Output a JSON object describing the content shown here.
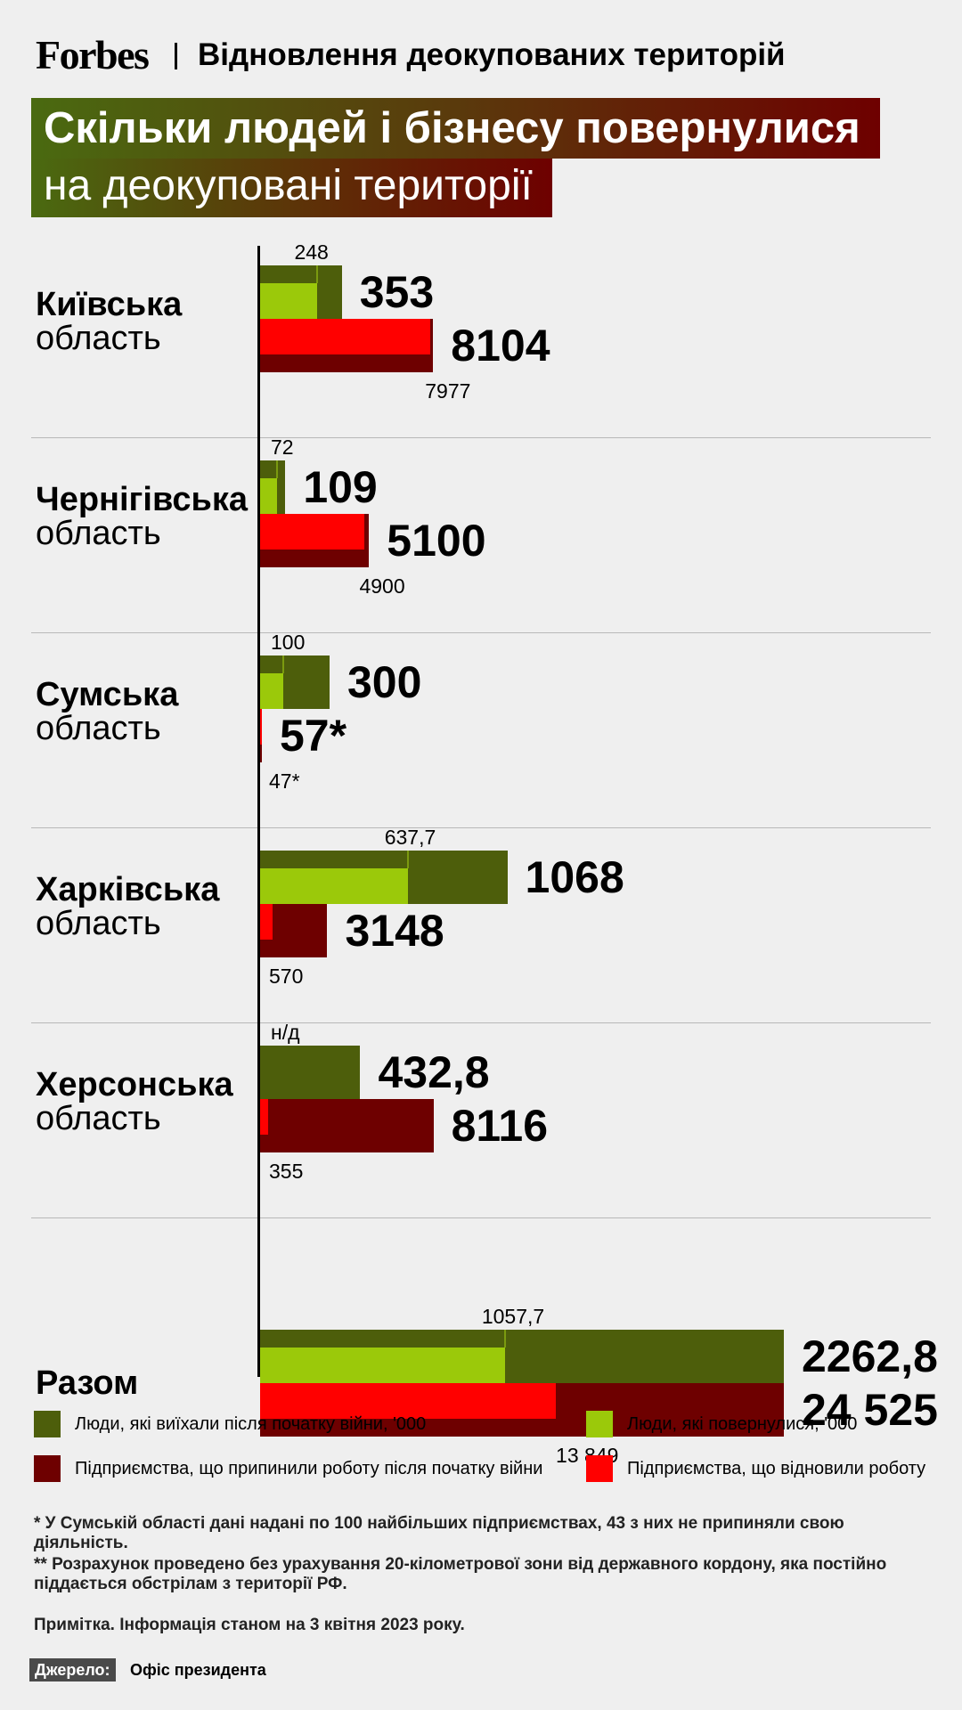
{
  "header": {
    "brand": "Forbes",
    "section": "Відновлення деокупованих територій"
  },
  "title": {
    "line1": "Скільки людей і бізнесу повернулися",
    "line2": "на деокуповані території"
  },
  "colors": {
    "people_left": "#4d5e0b",
    "people_returned": "#9bc90a",
    "business_stopped": "#6e0000",
    "business_resumed": "#ff0000"
  },
  "chart_data": {
    "type": "bar",
    "orientation": "horizontal",
    "categories": [
      "Київська область",
      "Чернігівська область",
      "Сумська область",
      "Харківська область",
      "Херсонська область",
      "Разом"
    ],
    "regions": [
      {
        "name": "Київська",
        "sub": "область",
        "people_left": 353,
        "people_left_label": "353",
        "people_returned": 248,
        "people_returned_label": "248",
        "business_stopped": 8104,
        "business_stopped_label": "8104",
        "business_resumed": 7977,
        "business_resumed_label": "7977"
      },
      {
        "name": "Чернігівська",
        "sub": "область",
        "people_left": 109,
        "people_left_label": "109",
        "people_returned": 72,
        "people_returned_label": "72",
        "business_stopped": 5100,
        "business_stopped_label": "5100",
        "business_resumed": 4900,
        "business_resumed_label": "4900"
      },
      {
        "name": "Сумська",
        "sub": "область",
        "people_left": 300,
        "people_left_label": "300",
        "people_returned": 100,
        "people_returned_label": "100",
        "business_stopped": 57,
        "business_stopped_label": "57*",
        "business_resumed": 47,
        "business_resumed_label": "47*"
      },
      {
        "name": "Харківська",
        "sub": "область",
        "people_left": 1068,
        "people_left_label": "1068",
        "people_returned": 637.7,
        "people_returned_label": "637,7",
        "business_stopped": 3148,
        "business_stopped_label": "3148",
        "business_resumed": 570,
        "business_resumed_label": "570"
      },
      {
        "name": "Херсонська",
        "sub": "область",
        "people_left": 432.8,
        "people_left_label": "432,8",
        "people_returned": null,
        "people_returned_label": "н/д",
        "business_stopped": 8116,
        "business_stopped_label": "8116",
        "business_resumed": 355,
        "business_resumed_label": "355"
      },
      {
        "name": "Разом",
        "sub": "",
        "people_left": 2262.8,
        "people_left_label": "2262,8",
        "people_returned": 1057.7,
        "people_returned_label": "1057,7",
        "business_stopped": 24525,
        "business_stopped_label": "24 525",
        "business_resumed": 13849,
        "business_resumed_label": "13 849"
      }
    ],
    "series": [
      {
        "name": "Люди, які виїхали після початку війни, '000",
        "key": "people_left"
      },
      {
        "name": "Люди, які повернулися, '000",
        "key": "people_returned"
      },
      {
        "name": "Підприємства, що припинили роботу після початку війни",
        "key": "business_stopped"
      },
      {
        "name": "Підприємства, що відновили роботу",
        "key": "business_resumed"
      }
    ],
    "legend_position": "bottom"
  },
  "legend": [
    {
      "label": "Люди, які виїхали після початку війни, '000",
      "color": "#4d5e0b"
    },
    {
      "label": "Люди, які повернулися, '000",
      "color": "#9bc90a"
    },
    {
      "label": "Підприємства, що припинили роботу після початку війни",
      "color": "#6e0000"
    },
    {
      "label": "Підприємства, що відновили роботу",
      "color": "#ff0000"
    }
  ],
  "footnotes": {
    "note1": "* У Сумській області дані надані по 100 найбільших підприємствах, 43 з них не припиняли свою діяльність.",
    "note2": "** Розрахунок проведено без урахування 20-кілометрової зони від державного кордону, яка постійно піддається обстрілам з території РФ.",
    "note3": "Примітка. Інформація станом на 3 квітня 2023 року."
  },
  "source": {
    "label": "Джерело:",
    "value": "Офіс президента"
  }
}
